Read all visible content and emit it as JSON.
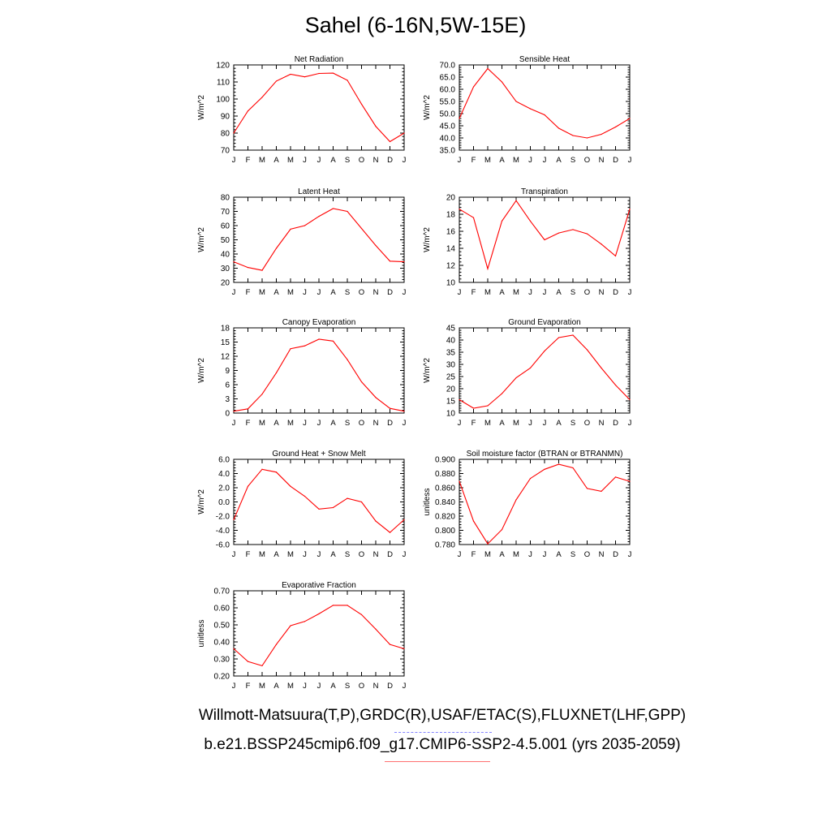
{
  "title": "Sahel (6-16N,5W-15E)",
  "captions": {
    "observations": "Willmott-Matsuura(T,P),GRDC(R),USAF/ETAC(S),FLUXNET(LHF,GPP)",
    "model": "b.e21.BSSP245cmip6.f09_g17.CMIP6-SSP2-4.5.001 (yrs 2035-2059)"
  },
  "colors": {
    "model_line": "#ff0000",
    "observations_line": "#3333ff",
    "axes": "#000000"
  },
  "chart_data": [
    {
      "type": "line",
      "title": "Net Radiation",
      "ylabel": "W/m^2",
      "xlabel": "",
      "categories": [
        "J",
        "F",
        "M",
        "A",
        "M",
        "J",
        "J",
        "A",
        "S",
        "O",
        "N",
        "D",
        "J"
      ],
      "ylim": [
        70,
        120
      ],
      "yticks": [
        "70",
        "80",
        "90",
        "100",
        "110",
        "120"
      ],
      "values": [
        80,
        93,
        101,
        110.5,
        114.5,
        113,
        115,
        115.2,
        111,
        97,
        84,
        75,
        80
      ]
    },
    {
      "type": "line",
      "title": "Sensible Heat",
      "ylabel": "W/m^2",
      "xlabel": "",
      "categories": [
        "J",
        "F",
        "M",
        "A",
        "M",
        "J",
        "J",
        "A",
        "S",
        "O",
        "N",
        "D",
        "J"
      ],
      "ylim": [
        35,
        70
      ],
      "yticks": [
        "35.0",
        "40.0",
        "45.0",
        "50.0",
        "55.0",
        "60.0",
        "65.0",
        "70.0"
      ],
      "values": [
        48,
        61,
        68.5,
        63,
        55,
        52,
        49.5,
        44,
        41,
        40,
        41.5,
        44.5,
        48
      ]
    },
    {
      "type": "line",
      "title": "Latent Heat",
      "ylabel": "W/m^2",
      "xlabel": "",
      "categories": [
        "J",
        "F",
        "M",
        "A",
        "M",
        "J",
        "J",
        "A",
        "S",
        "O",
        "N",
        "D",
        "J"
      ],
      "ylim": [
        20,
        80
      ],
      "yticks": [
        "20",
        "30",
        "40",
        "50",
        "60",
        "70",
        "80"
      ],
      "values": [
        34.5,
        30.5,
        28.5,
        44,
        57.5,
        60,
        66.5,
        72,
        70,
        58,
        46,
        35,
        34.5
      ]
    },
    {
      "type": "line",
      "title": "Transpiration",
      "ylabel": "W/m^2",
      "xlabel": "",
      "categories": [
        "J",
        "F",
        "M",
        "A",
        "M",
        "J",
        "J",
        "A",
        "S",
        "O",
        "N",
        "D",
        "J"
      ],
      "ylim": [
        10,
        20
      ],
      "yticks": [
        "10",
        "12",
        "14",
        "16",
        "18",
        "20"
      ],
      "values": [
        18.6,
        17.6,
        11.6,
        17.2,
        19.6,
        17.2,
        15,
        15.8,
        16.2,
        15.7,
        14.5,
        13.1,
        18.6
      ]
    },
    {
      "type": "line",
      "title": "Canopy Evaporation",
      "ylabel": "W/m^2",
      "xlabel": "",
      "categories": [
        "J",
        "F",
        "M",
        "A",
        "M",
        "J",
        "J",
        "A",
        "S",
        "O",
        "N",
        "D",
        "J"
      ],
      "ylim": [
        0,
        18
      ],
      "yticks": [
        "0",
        "3",
        "6",
        "9",
        "12",
        "15",
        "18"
      ],
      "values": [
        0.4,
        0.9,
        4,
        8.5,
        13.6,
        14.2,
        15.6,
        15.2,
        11.3,
        6.6,
        3.3,
        1,
        0.4
      ]
    },
    {
      "type": "line",
      "title": "Ground Evaporation",
      "ylabel": "W/m^2",
      "xlabel": "",
      "categories": [
        "J",
        "F",
        "M",
        "A",
        "M",
        "J",
        "J",
        "A",
        "S",
        "O",
        "N",
        "D",
        "J"
      ],
      "ylim": [
        10,
        45
      ],
      "yticks": [
        "10",
        "15",
        "20",
        "25",
        "30",
        "35",
        "40",
        "45"
      ],
      "values": [
        15.5,
        12,
        13,
        18,
        24.5,
        28.5,
        35.5,
        41,
        42,
        36,
        28.5,
        21.5,
        15.5
      ]
    },
    {
      "type": "line",
      "title": "Ground Heat + Snow Melt",
      "ylabel": "W/m^2",
      "xlabel": "",
      "categories": [
        "J",
        "F",
        "M",
        "A",
        "M",
        "J",
        "J",
        "A",
        "S",
        "O",
        "N",
        "D",
        "J"
      ],
      "ylim": [
        -6,
        6
      ],
      "yticks": [
        "-6.0",
        "-4.0",
        "-2.0",
        "0.0",
        "2.0",
        "4.0",
        "6.0"
      ],
      "values": [
        -2.5,
        2.2,
        4.6,
        4.2,
        2.2,
        0.8,
        -1,
        -0.8,
        0.5,
        0,
        -2.7,
        -4.3,
        -2.5
      ]
    },
    {
      "type": "line",
      "title": "Soil moisture factor (BTRAN or BTRANMN)",
      "ylabel": "unitless",
      "xlabel": "",
      "categories": [
        "J",
        "F",
        "M",
        "A",
        "M",
        "J",
        "J",
        "A",
        "S",
        "O",
        "N",
        "D",
        "J"
      ],
      "ylim": [
        0.78,
        0.9
      ],
      "yticks": [
        "0.780",
        "0.800",
        "0.820",
        "0.840",
        "0.860",
        "0.880",
        "0.900"
      ],
      "values": [
        0.869,
        0.813,
        0.781,
        0.801,
        0.843,
        0.873,
        0.886,
        0.893,
        0.888,
        0.859,
        0.855,
        0.875,
        0.869
      ]
    },
    {
      "type": "line",
      "title": "Evaporative Fraction",
      "ylabel": "unitless",
      "xlabel": "",
      "categories": [
        "J",
        "F",
        "M",
        "A",
        "M",
        "J",
        "J",
        "A",
        "S",
        "O",
        "N",
        "D",
        "J"
      ],
      "ylim": [
        0.2,
        0.7
      ],
      "yticks": [
        "0.20",
        "0.30",
        "0.40",
        "0.50",
        "0.60",
        "0.70"
      ],
      "values": [
        0.36,
        0.285,
        0.26,
        0.385,
        0.495,
        0.52,
        0.565,
        0.615,
        0.615,
        0.56,
        0.475,
        0.385,
        0.36
      ]
    }
  ]
}
